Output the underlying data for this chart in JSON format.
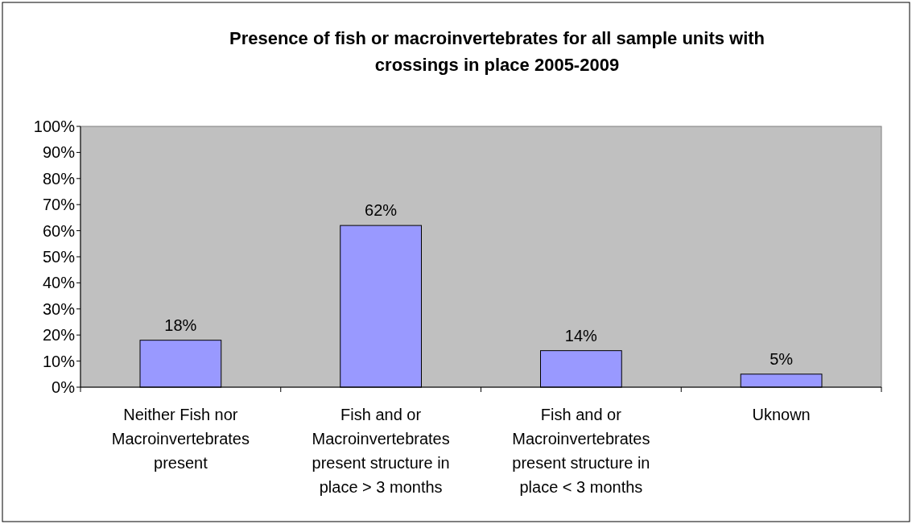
{
  "chart_data": {
    "type": "bar",
    "title": "Presence of fish or macroinvertebrates for all sample units with crossings in place 2005-2009",
    "categories": [
      "Neither Fish nor Macroinvertebrates present",
      "Fish and or Macroinvertebrates present structure in place > 3 months",
      "Fish and or Macroinvertebrates present structure in place < 3 months",
      "Uknown"
    ],
    "values": [
      18,
      62,
      14,
      5
    ],
    "color": "#9999ff",
    "data_labels": true,
    "ylim": [
      0,
      100
    ],
    "yticks": [
      {
        "value": 0,
        "label": "0%"
      },
      {
        "value": 10,
        "label": "10%"
      },
      {
        "value": 20,
        "label": "20%"
      },
      {
        "value": 30,
        "label": "30%"
      },
      {
        "value": 40,
        "label": "40%"
      },
      {
        "value": 50,
        "label": "50%"
      },
      {
        "value": 60,
        "label": "60%"
      },
      {
        "value": 70,
        "label": "70%"
      },
      {
        "value": 80,
        "label": "80%"
      },
      {
        "value": 90,
        "label": "90%"
      },
      {
        "value": 100,
        "label": "100%"
      }
    ],
    "value_labels": [
      "18%",
      "62%",
      "14%",
      "5%"
    ]
  }
}
